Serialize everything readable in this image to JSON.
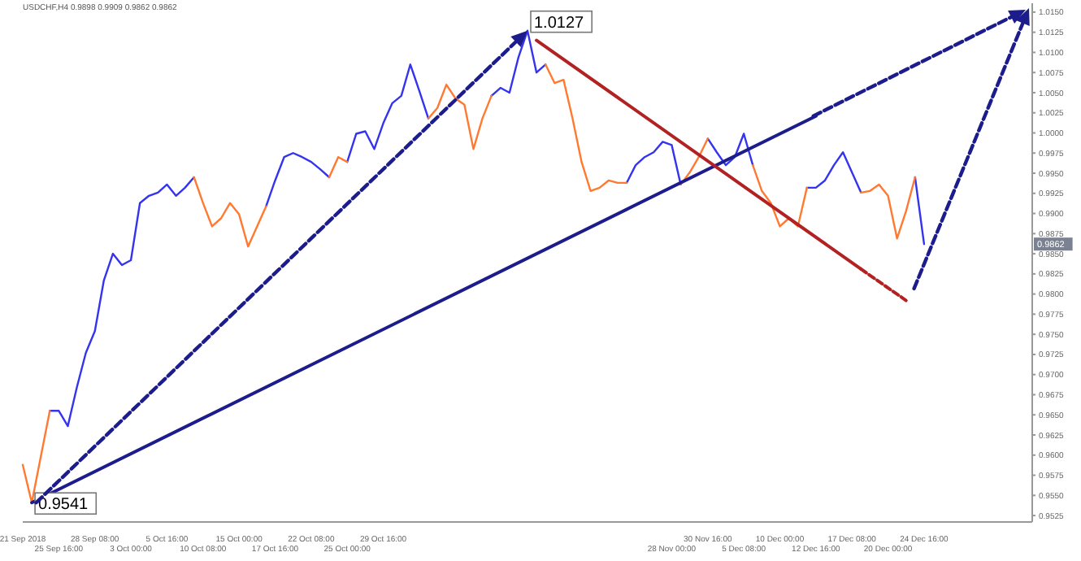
{
  "chart_data": {
    "type": "line",
    "title": "USDCHF,H4  0.9898 0.9909 0.9862 0.9862",
    "categories": [
      "21 Sep 2018",
      null,
      null,
      null,
      "25 Sep 16:00",
      null,
      null,
      null,
      "28 Sep 08:00",
      null,
      null,
      null,
      "3 Oct 00:00",
      null,
      null,
      null,
      "5 Oct 16:00",
      null,
      null,
      null,
      "10 Oct 08:00",
      null,
      null,
      null,
      "15 Oct 00:00",
      null,
      null,
      null,
      "17 Oct 16:00",
      null,
      null,
      null,
      "22 Oct 08:00",
      null,
      null,
      null,
      "25 Oct 00:00",
      null,
      null,
      null,
      "29 Oct 16:00",
      null,
      null,
      null,
      null,
      null,
      null,
      null,
      null,
      null,
      null,
      null,
      null,
      null,
      null,
      null,
      null,
      null,
      null,
      null,
      null,
      null,
      null,
      null,
      null,
      null,
      null,
      null,
      null,
      null,
      null,
      null,
      "28 Nov 00:00",
      null,
      null,
      null,
      "30 Nov 16:00",
      null,
      null,
      null,
      "5 Dec 08:00",
      null,
      null,
      null,
      "10 Dec 00:00",
      null,
      null,
      null,
      "12 Dec 16:00",
      null,
      null,
      null,
      "17 Dec 08:00",
      null,
      null,
      null,
      "20 Dec 00:00",
      null,
      null,
      null,
      "24 Dec 16:00",
      null,
      null,
      null,
      null,
      null,
      null,
      null,
      null,
      null,
      null,
      null,
      null
    ],
    "series": [
      {
        "color": "#3434f0",
        "values": [
          null,
          null,
          null,
          0.9655,
          0.9655,
          0.9636,
          0.9684,
          0.9727,
          0.9754,
          0.9817,
          0.985,
          0.9836,
          0.9842,
          0.9913,
          0.9922,
          0.9926,
          0.9936,
          0.9922,
          0.9932,
          0.9945,
          null,
          null,
          null,
          null,
          null,
          null,
          null,
          0.9909,
          0.9941,
          0.997,
          0.9975,
          0.997,
          0.9964,
          0.9955,
          0.9945,
          null,
          0.9964,
          0.9999,
          1.0002,
          0.998,
          1.0012,
          1.0037,
          1.0046,
          1.0085,
          1.0052,
          1.0018,
          null,
          null,
          null,
          null,
          null,
          null,
          1.0046,
          1.0056,
          1.005,
          1.0094,
          1.0127,
          1.0075,
          1.0085,
          null,
          null,
          null,
          null,
          null,
          null,
          null,
          null,
          0.9938,
          0.996,
          0.997,
          0.9976,
          0.9989,
          0.9985,
          0.9936,
          null,
          null,
          0.9993,
          0.9976,
          0.996,
          0.997,
          0.9999,
          0.996,
          null,
          null,
          null,
          null,
          null,
          0.9932,
          0.9932,
          0.9941,
          0.996,
          0.9976,
          0.9951,
          0.9926,
          null,
          null,
          null,
          null,
          null,
          0.9945,
          0.9862,
          null,
          null,
          null,
          null,
          null,
          null,
          null,
          null,
          null,
          null,
          null,
          null
        ]
      },
      {
        "color": "#ff7a30",
        "values": [
          0.9588,
          0.9541,
          0.9598,
          0.9655,
          null,
          null,
          null,
          null,
          null,
          null,
          null,
          null,
          null,
          null,
          null,
          null,
          null,
          null,
          null,
          0.9945,
          0.9913,
          0.9884,
          0.9894,
          0.9913,
          0.9899,
          0.9859,
          0.9884,
          0.9909,
          null,
          null,
          null,
          null,
          null,
          null,
          0.9945,
          0.997,
          0.9964,
          null,
          null,
          null,
          null,
          null,
          null,
          null,
          null,
          1.0018,
          1.0031,
          1.006,
          1.0043,
          1.0035,
          0.998,
          1.0018,
          1.0046,
          null,
          null,
          null,
          null,
          null,
          1.0085,
          1.0062,
          1.0066,
          1.0018,
          0.9964,
          0.9928,
          0.9932,
          0.9941,
          0.9938,
          0.9938,
          null,
          null,
          null,
          null,
          null,
          0.9936,
          0.9951,
          0.997,
          0.9993,
          null,
          null,
          null,
          null,
          0.996,
          0.9928,
          0.9913,
          0.9884,
          0.9894,
          0.9884,
          0.9932,
          null,
          null,
          null,
          null,
          null,
          0.9926,
          0.9928,
          0.9936,
          0.9922,
          0.9869,
          0.9903,
          0.9945,
          null,
          null,
          null,
          null,
          null,
          null,
          null,
          null,
          null,
          null,
          null,
          null,
          null
        ]
      },
      {
        "color": "#1c1c8c",
        "line_style": "solid",
        "values": [
          null,
          0.9541,
          null,
          null,
          null,
          null,
          null,
          null,
          null,
          null,
          null,
          null,
          null,
          null,
          null,
          null,
          null,
          null,
          null,
          null,
          null,
          null,
          null,
          null,
          null,
          null,
          null,
          null,
          null,
          null,
          null,
          null,
          null,
          null,
          null,
          null,
          null,
          null,
          null,
          null,
          null,
          null,
          null,
          null,
          null,
          null,
          null,
          null,
          null,
          null,
          null,
          null,
          null,
          null,
          null,
          null,
          null,
          null,
          null,
          null,
          null,
          null,
          null,
          null,
          null,
          null,
          null,
          null,
          null,
          null,
          null,
          null,
          null,
          null,
          null,
          null,
          null,
          null,
          null,
          null,
          null,
          null,
          null,
          null,
          null,
          null,
          null,
          null,
          1.0021,
          null,
          null,
          null,
          null,
          null,
          null,
          null,
          null,
          null,
          null,
          null,
          null,
          null,
          null,
          null,
          null,
          null,
          null,
          null,
          null,
          null,
          null,
          null,
          null
        ]
      },
      {
        "color": "#b22222",
        "line_style": "solid",
        "values": [
          null,
          null,
          null,
          null,
          null,
          null,
          null,
          null,
          null,
          null,
          null,
          null,
          null,
          null,
          null,
          null,
          null,
          null,
          null,
          null,
          null,
          null,
          null,
          null,
          null,
          null,
          null,
          null,
          null,
          null,
          null,
          null,
          null,
          null,
          null,
          null,
          null,
          null,
          null,
          null,
          null,
          null,
          null,
          null,
          null,
          null,
          null,
          null,
          null,
          null,
          null,
          null,
          null,
          null,
          null,
          null,
          null,
          1.0115,
          null,
          null,
          null,
          null,
          null,
          null,
          null,
          null,
          null,
          null,
          null,
          null,
          null,
          null,
          null,
          null,
          null,
          null,
          null,
          null,
          null,
          null,
          null,
          null,
          null,
          null,
          null,
          null,
          null,
          null,
          null,
          null,
          null,
          null,
          null,
          0.9831,
          null,
          null,
          null,
          null,
          null,
          null,
          null,
          null,
          null,
          null,
          null,
          null,
          null,
          null,
          null,
          null,
          null,
          null,
          null
        ]
      },
      {
        "color": "#b22222",
        "line_style": "dashed",
        "values": [
          null,
          null,
          null,
          null,
          null,
          null,
          null,
          null,
          null,
          null,
          null,
          null,
          null,
          null,
          null,
          null,
          null,
          null,
          null,
          null,
          null,
          null,
          null,
          null,
          null,
          null,
          null,
          null,
          null,
          null,
          null,
          null,
          null,
          null,
          null,
          null,
          null,
          null,
          null,
          null,
          null,
          null,
          null,
          null,
          null,
          null,
          null,
          null,
          null,
          null,
          null,
          null,
          null,
          null,
          null,
          null,
          null,
          null,
          null,
          null,
          null,
          null,
          null,
          null,
          null,
          null,
          null,
          null,
          null,
          null,
          null,
          null,
          null,
          null,
          null,
          null,
          null,
          null,
          null,
          null,
          null,
          null,
          null,
          null,
          null,
          null,
          null,
          null,
          null,
          null,
          null,
          null,
          null,
          0.9831,
          null,
          null,
          null,
          null,
          0.9792,
          null,
          null,
          null,
          null,
          null,
          null,
          null,
          null,
          null,
          null,
          null,
          null,
          null,
          null
        ]
      }
    ],
    "annotations": [
      "1.0127",
      "0.9541",
      "0.9862"
    ],
    "ylim": [
      0.9517,
      1.0161
    ],
    "yticks": [
      {
        "value": 1.015,
        "label": "1.0150"
      },
      {
        "value": 1.0125,
        "label": "1.0125"
      },
      {
        "value": 1.01,
        "label": "1.0100"
      },
      {
        "value": 1.0075,
        "label": "1.0075"
      },
      {
        "value": 1.005,
        "label": "1.0050"
      },
      {
        "value": 1.0025,
        "label": "1.0025"
      },
      {
        "value": 1.0,
        "label": "1.0000"
      },
      {
        "value": 0.9975,
        "label": "0.9975"
      },
      {
        "value": 0.995,
        "label": "0.9950"
      },
      {
        "value": 0.9925,
        "label": "0.9925"
      },
      {
        "value": 0.99,
        "label": "0.9900"
      },
      {
        "value": 0.9875,
        "label": "0.9875"
      },
      {
        "value": 0.985,
        "label": "0.9850"
      },
      {
        "value": 0.9825,
        "label": "0.9825"
      },
      {
        "value": 0.98,
        "label": "0.9800"
      },
      {
        "value": 0.9775,
        "label": "0.9775"
      },
      {
        "value": 0.975,
        "label": "0.9750"
      },
      {
        "value": 0.9725,
        "label": "0.9725"
      },
      {
        "value": 0.97,
        "label": "0.9700"
      },
      {
        "value": 0.9675,
        "label": "0.9675"
      },
      {
        "value": 0.965,
        "label": "0.9650"
      },
      {
        "value": 0.9625,
        "label": "0.9625"
      },
      {
        "value": 0.96,
        "label": "0.9600"
      },
      {
        "value": 0.9575,
        "label": "0.9575"
      },
      {
        "value": 0.955,
        "label": "0.9550"
      },
      {
        "value": 0.9525,
        "label": "0.9525"
      }
    ],
    "grid": false,
    "marker": "none"
  }
}
